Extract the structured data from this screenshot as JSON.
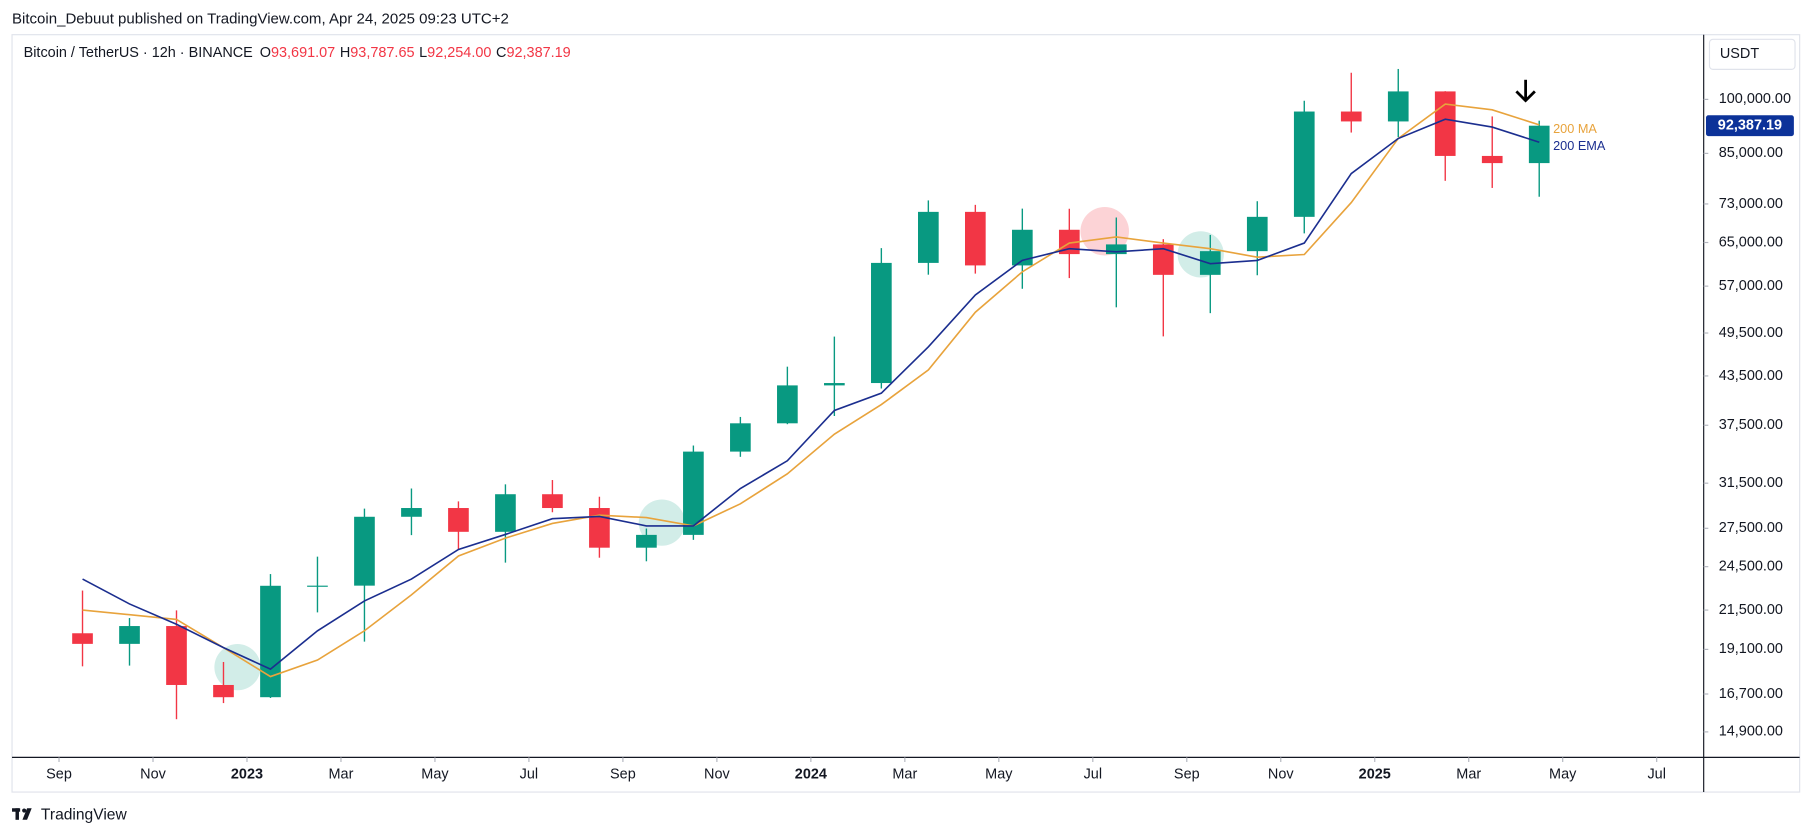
{
  "header": {
    "publisher": "Bitcoin_Debuut published on TradingView.com, Apr 24, 2025 09:23 UTC+2"
  },
  "chart_data": {
    "type": "candlestick",
    "symbol": "Bitcoin / TetherUS · 12h · BINANCE",
    "ohlc_legend": [
      {
        "key": "O",
        "value": "93,691.07"
      },
      {
        "key": "H",
        "value": "93,787.65"
      },
      {
        "key": "L",
        "value": "92,254.00"
      },
      {
        "key": "C",
        "value": "92,387.19"
      }
    ],
    "currency": "USDT",
    "x": [
      "2022-09",
      "2022-10",
      "2022-11",
      "2022-12",
      "2023-01",
      "2023-02",
      "2023-03",
      "2023-04",
      "2023-05",
      "2023-06",
      "2023-07",
      "2023-08",
      "2023-09",
      "2023-10",
      "2023-11",
      "2023-12",
      "2024-01",
      "2024-02",
      "2024-03",
      "2024-04",
      "2024-05",
      "2024-06",
      "2024-07",
      "2024-08",
      "2024-09",
      "2024-10",
      "2024-11",
      "2024-12",
      "2025-01",
      "2025-02",
      "2025-03",
      "2025-04"
    ],
    "open": [
      20050,
      19420,
      20490,
      17160,
      16540,
      23130,
      23140,
      28470,
      29230,
      27210,
      30470,
      29230,
      25940,
      26960,
      34640,
      37720,
      42280,
      42580,
      61130,
      71280,
      60670,
      67540,
      62770,
      64630,
      58970,
      63330,
      70220,
      96410,
      93580,
      102430,
      84350,
      82550
    ],
    "high": [
      22800,
      20990,
      21480,
      18390,
      23960,
      25250,
      29180,
      31000,
      29820,
      31390,
      31800,
      30240,
      27480,
      35280,
      38450,
      44730,
      48970,
      63910,
      73780,
      72800,
      71980,
      71950,
      70080,
      65660,
      66500,
      73600,
      99590,
      108350,
      109590,
      102500,
      95000,
      93790
    ],
    "low": [
      18150,
      18190,
      15480,
      16250,
      16500,
      21350,
      19550,
      26940,
      25810,
      24800,
      28860,
      25170,
      24900,
      26560,
      34100,
      37620,
      38560,
      41880,
      59000,
      59190,
      56550,
      58400,
      53480,
      49000,
      52550,
      58900,
      66800,
      90500,
      89260,
      78260,
      76600,
      74600
    ],
    "close": [
      19420,
      20490,
      17160,
      16540,
      23130,
      23140,
      28470,
      29230,
      27210,
      30470,
      29230,
      25940,
      26960,
      34640,
      37720,
      42280,
      42580,
      61130,
      71280,
      60670,
      67540,
      62770,
      64630,
      58970,
      63330,
      70220,
      96410,
      93580,
      102430,
      84350,
      82550,
      92387.19
    ],
    "up_color": "#089981",
    "down_color": "#f23645",
    "series": [
      {
        "name": "200 MA",
        "color": "#e8a33c",
        "values": [
          21500,
          21200,
          20900,
          19200,
          17600,
          18500,
          20200,
          22500,
          25300,
          26700,
          27900,
          28600,
          28400,
          27700,
          29600,
          32400,
          36500,
          39900,
          44300,
          52700,
          59500,
          64900,
          66100,
          64900,
          63800,
          62200,
          62700,
          73300,
          88900,
          98600,
          96900,
          92600
        ]
      },
      {
        "name": "200 EMA",
        "color": "#1b2e8f",
        "values": [
          23600,
          21900,
          20600,
          19200,
          18000,
          20200,
          22100,
          23600,
          25800,
          27000,
          28300,
          28500,
          27700,
          27700,
          31000,
          33700,
          39200,
          41300,
          47500,
          55500,
          61600,
          63800,
          63200,
          63800,
          61000,
          61600,
          64900,
          80000,
          88900,
          94200,
          92000,
          87900
        ]
      }
    ],
    "last_price_label": "92,387.19",
    "xlim": [
      "2022-08",
      "2025-08"
    ],
    "xticks": [
      {
        "value": "2022-09",
        "label": "Sep"
      },
      {
        "value": "2022-11",
        "label": "Nov"
      },
      {
        "value": "2023-01",
        "label": "2023"
      },
      {
        "value": "2023-03",
        "label": "Mar"
      },
      {
        "value": "2023-05",
        "label": "May"
      },
      {
        "value": "2023-07",
        "label": "Jul"
      },
      {
        "value": "2023-09",
        "label": "Sep"
      },
      {
        "value": "2023-11",
        "label": "Nov"
      },
      {
        "value": "2024-01",
        "label": "2024"
      },
      {
        "value": "2024-03",
        "label": "Mar"
      },
      {
        "value": "2024-05",
        "label": "May"
      },
      {
        "value": "2024-07",
        "label": "Jul"
      },
      {
        "value": "2024-09",
        "label": "Sep"
      },
      {
        "value": "2024-11",
        "label": "Nov"
      },
      {
        "value": "2025-01",
        "label": "2025"
      },
      {
        "value": "2025-03",
        "label": "Mar"
      },
      {
        "value": "2025-05",
        "label": "May"
      },
      {
        "value": "2025-07",
        "label": "Jul"
      }
    ],
    "ylim": [
      13800,
      121500
    ],
    "log_y": true,
    "yticks": [
      {
        "value": 100000,
        "label": "100,000.00"
      },
      {
        "value": 85000,
        "label": "85,000.00"
      },
      {
        "value": 73000,
        "label": "73,000.00"
      },
      {
        "value": 65000,
        "label": "65,000.00"
      },
      {
        "value": 57000,
        "label": "57,000.00"
      },
      {
        "value": 49500,
        "label": "49,500.00"
      },
      {
        "value": 43500,
        "label": "43,500.00"
      },
      {
        "value": 37500,
        "label": "37,500.00"
      },
      {
        "value": 31500,
        "label": "31,500.00"
      },
      {
        "value": 27500,
        "label": "27,500.00"
      },
      {
        "value": 24500,
        "label": "24,500.00"
      },
      {
        "value": 21500,
        "label": "21,500.00"
      },
      {
        "value": 19100,
        "label": "19,100.00"
      },
      {
        "value": 16700,
        "label": "16,700.00"
      },
      {
        "value": 14900,
        "label": "14,900.00"
      }
    ],
    "grid": false
  },
  "footer": {
    "brand": "TradingView"
  }
}
